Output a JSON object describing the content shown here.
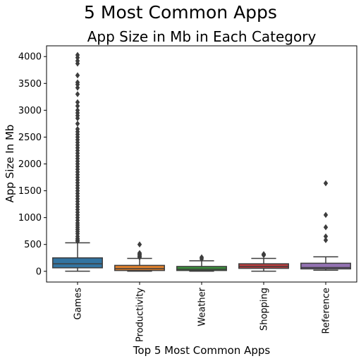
{
  "chart_data": {
    "type": "box",
    "suptitle": "5 Most Common Apps",
    "title": "App Size in Mb in Each Category",
    "xlabel": "Top 5 Most Common Apps",
    "ylabel": "App Size In Mb",
    "ylim": [
      -200,
      4200
    ],
    "yticks": [
      0,
      500,
      1000,
      1500,
      2000,
      2500,
      3000,
      3500,
      4000
    ],
    "ytick_labels": [
      "0",
      "500",
      "1000",
      "1500",
      "2000",
      "2500",
      "3000",
      "3500",
      "4000"
    ],
    "categories": [
      "Games",
      "Productivity",
      "Weather",
      "Shopping",
      "Reference"
    ],
    "colors": [
      "#3274a1",
      "#e1812c",
      "#3a923a",
      "#c03d3e",
      "#9372b2"
    ],
    "boxes": [
      {
        "category": "Games",
        "whisker_low": 2,
        "q1": 65,
        "median": 140,
        "q3": 250,
        "whisker_high": 530,
        "outliers": [
          560,
          580,
          610,
          650,
          700,
          740,
          780,
          820,
          860,
          900,
          950,
          1000,
          1050,
          1100,
          1150,
          1200,
          1250,
          1300,
          1350,
          1400,
          1450,
          1500,
          1550,
          1600,
          1650,
          1700,
          1750,
          1800,
          1850,
          1900,
          1950,
          2000,
          2050,
          2100,
          2150,
          2200,
          2250,
          2300,
          2350,
          2400,
          2450,
          2500,
          2550,
          2600,
          2650,
          2750,
          2850,
          2900,
          2950,
          3000,
          3080,
          3150,
          3300,
          3420,
          3480,
          3520,
          3650,
          3870,
          3920,
          3980,
          4030
        ]
      },
      {
        "category": "Productivity",
        "whisker_low": 2,
        "q1": 15,
        "median": 50,
        "q3": 110,
        "whisker_high": 240,
        "outliers": [
          260,
          280,
          300,
          320,
          340,
          500
        ]
      },
      {
        "category": "Weather",
        "whisker_low": 2,
        "q1": 15,
        "median": 40,
        "q3": 90,
        "whisker_high": 195,
        "outliers": [
          230,
          260
        ]
      },
      {
        "category": "Shopping",
        "whisker_low": 2,
        "q1": 55,
        "median": 90,
        "q3": 140,
        "whisker_high": 240,
        "outliers": [
          300,
          320
        ]
      },
      {
        "category": "Reference",
        "whisker_low": 20,
        "q1": 45,
        "median": 70,
        "q3": 150,
        "whisker_high": 270,
        "outliers": [
          580,
          650,
          820,
          1050,
          1640
        ]
      }
    ]
  }
}
